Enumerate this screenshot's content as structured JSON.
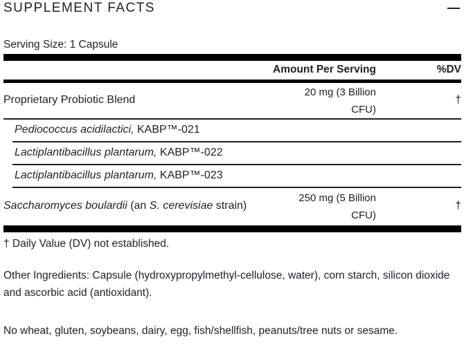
{
  "header": {
    "title": "SUPPLEMENT FACTS",
    "collapse_icon": "minus-icon"
  },
  "serving_size": "Serving Size: 1 Capsule",
  "table": {
    "col_amount": "Amount Per Serving",
    "col_dv": "%DV",
    "rows": [
      {
        "name": "Proprietary Probiotic Blend",
        "amount_line1": "20 mg (3 Billion",
        "amount_line2": "CFU)",
        "dv": "†"
      },
      {
        "name_italic": "Pediococcus acidilactici,",
        "name_rest": " KABP™-021"
      },
      {
        "name_italic": "Lactiplantibacillus plantarum,",
        "name_rest": " KABP™-022"
      },
      {
        "name_italic": "Lactiplantibacillus plantarum,",
        "name_rest": " KABP™-023"
      },
      {
        "name_italic": "Saccharomyces boulardii",
        "name_mid": " (an ",
        "name_italic2": "S. cerevisiae",
        "name_rest": " strain)",
        "amount_line1": "250 mg (5 Billion",
        "amount_line2": "CFU)",
        "dv": "†"
      }
    ]
  },
  "footnote": "† Daily Value (DV) not established.",
  "other_ingredients": "Other Ingredients: Capsule (hydroxypropylmethyl-cellulose, water), corn starch, silicon dioxide and ascorbic acid (antioxidant).",
  "allergen": "No wheat, gluten, soybeans, dairy, egg, fish/shellfish, peanuts/tree nuts or sesame."
}
